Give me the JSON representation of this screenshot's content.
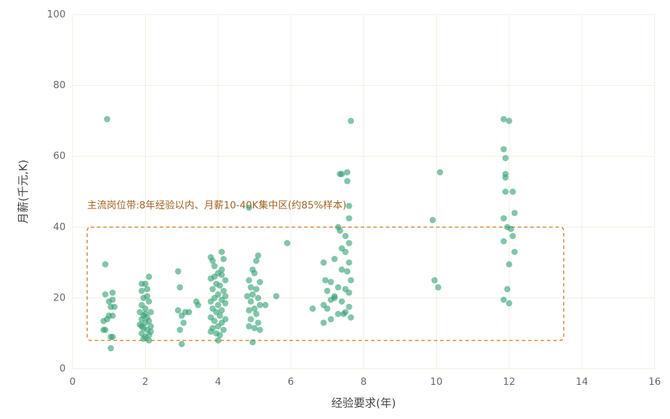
{
  "chart_data": {
    "type": "scatter",
    "x_label": "经验要求(年)",
    "y_label": "月薪(千元,K)",
    "color": "#2e9e72",
    "grid": true,
    "xlim": [
      0,
      16
    ],
    "xticks": [
      0,
      2,
      4,
      6,
      8,
      10,
      12,
      14,
      16
    ],
    "ylim": [
      0,
      100
    ],
    "yticks": [
      0,
      20,
      40,
      60,
      80,
      100
    ],
    "annotation": {
      "text": "主流岗位带:8年经验以内、月薪10-40K集中区(约85%样本)",
      "x": [
        0.4,
        13.5
      ],
      "y": [
        8,
        40
      ]
    },
    "x": [
      0.95,
      0.9,
      0.9,
      0.85,
      0.9,
      1.0,
      1.05,
      1.1,
      1.1,
      1.0,
      1.1,
      0.95,
      1.05,
      1.1,
      1.05,
      0.85,
      1.15,
      2.0,
      1.9,
      2.1,
      1.9,
      2.05,
      1.95,
      2.1,
      1.9,
      2.0,
      2.15,
      1.85,
      1.95,
      2.05,
      1.9,
      2.1,
      2.0,
      1.85,
      2.15,
      1.95,
      2.05,
      1.9,
      2.1,
      2.0,
      1.95,
      2.1,
      2.05,
      1.9,
      2.0,
      2.15,
      2.9,
      2.95,
      2.9,
      3.1,
      3.0,
      3.05,
      2.95,
      3.2,
      3.0,
      3.4,
      3.45,
      3.8,
      3.85,
      4.1,
      4.15,
      3.9,
      4.0,
      4.1,
      3.8,
      4.2,
      3.95,
      4.05,
      3.85,
      4.15,
      4.0,
      3.9,
      4.1,
      3.8,
      4.2,
      4.0,
      3.85,
      4.1,
      3.95,
      4.05,
      3.8,
      4.2,
      3.9,
      4.1,
      4.0,
      3.85,
      4.15,
      3.95,
      4.05,
      4.0,
      3.8,
      4.2,
      3.9,
      4.1,
      4.85,
      5.1,
      5.05,
      4.95,
      5.0,
      4.85,
      5.15,
      4.9,
      5.05,
      4.95,
      4.8,
      5.1,
      4.9,
      5.15,
      5.0,
      4.85,
      5.05,
      4.9,
      5.1,
      4.85,
      5.0,
      5.15,
      4.95,
      5.3,
      5.6,
      5.9,
      7.3,
      7.35,
      7.5,
      7.6,
      7.4,
      7.5,
      7.2,
      7.6,
      6.9,
      7.4,
      7.55,
      7.65,
      6.95,
      7.1,
      7.3,
      7.5,
      7.0,
      7.6,
      7.2,
      7.1,
      7.4,
      6.9,
      7.0,
      7.6,
      7.5,
      7.3,
      6.6,
      6.9,
      7.1,
      7.65,
      7.35,
      7.4,
      7.55,
      7.55,
      7.65,
      7.6,
      7.6,
      7.2,
      7.45,
      10.1,
      9.9,
      9.95,
      10.05,
      11.85,
      12.0,
      11.85,
      11.9,
      11.9,
      11.9,
      12.1,
      11.9,
      12.15,
      11.85,
      11.95,
      12.05,
      12.1,
      11.85,
      12.15,
      12.0,
      11.95,
      11.85,
      12.0
    ],
    "values": [
      70.5,
      29.5,
      21,
      13.5,
      11,
      19,
      17.5,
      21.5,
      19.5,
      15,
      15,
      14,
      9,
      9,
      5.8,
      11,
      17.5,
      24,
      24,
      26,
      22,
      22.5,
      20,
      19,
      18,
      17,
      16,
      16,
      15,
      14.5,
      14,
      13.5,
      13,
      12.5,
      12,
      11.5,
      11,
      10,
      9.5,
      9,
      8.5,
      8,
      20.5,
      12,
      15.5,
      10.5,
      27.5,
      23,
      16.5,
      16,
      15,
      13,
      11,
      16,
      7,
      19,
      18,
      31.5,
      30.5,
      33,
      31,
      29,
      27,
      26.5,
      25.5,
      25,
      24,
      23.5,
      22.5,
      22,
      21,
      20,
      19.5,
      19,
      18.5,
      18,
      17,
      16.5,
      16,
      15,
      14.5,
      14,
      13.5,
      13,
      12,
      11.5,
      11,
      10,
      9.5,
      8,
      10.5,
      20.5,
      26,
      28,
      45.5,
      32,
      30.5,
      28,
      27,
      25,
      24.5,
      23,
      22.5,
      21,
      20.5,
      20,
      19,
      18,
      17,
      16.5,
      15.5,
      14,
      13,
      12,
      11.5,
      11,
      7.5,
      18,
      20.5,
      35.5,
      40,
      39,
      37.5,
      35.5,
      34,
      33,
      31,
      30,
      30,
      28,
      27.5,
      25,
      25,
      24.5,
      23,
      22.5,
      22,
      21.5,
      20.5,
      19.5,
      19,
      18,
      17,
      17.5,
      16,
      15.5,
      17,
      13,
      14,
      14.5,
      55,
      55,
      55.5,
      53,
      70,
      42.5,
      46,
      20,
      15.5,
      55.5,
      42,
      25,
      23,
      70.5,
      70,
      62,
      59.5,
      55,
      54,
      50,
      50,
      44,
      42.5,
      40,
      39.5,
      37.5,
      36,
      33,
      29.5,
      22.5,
      19.5,
      18.5
    ]
  }
}
